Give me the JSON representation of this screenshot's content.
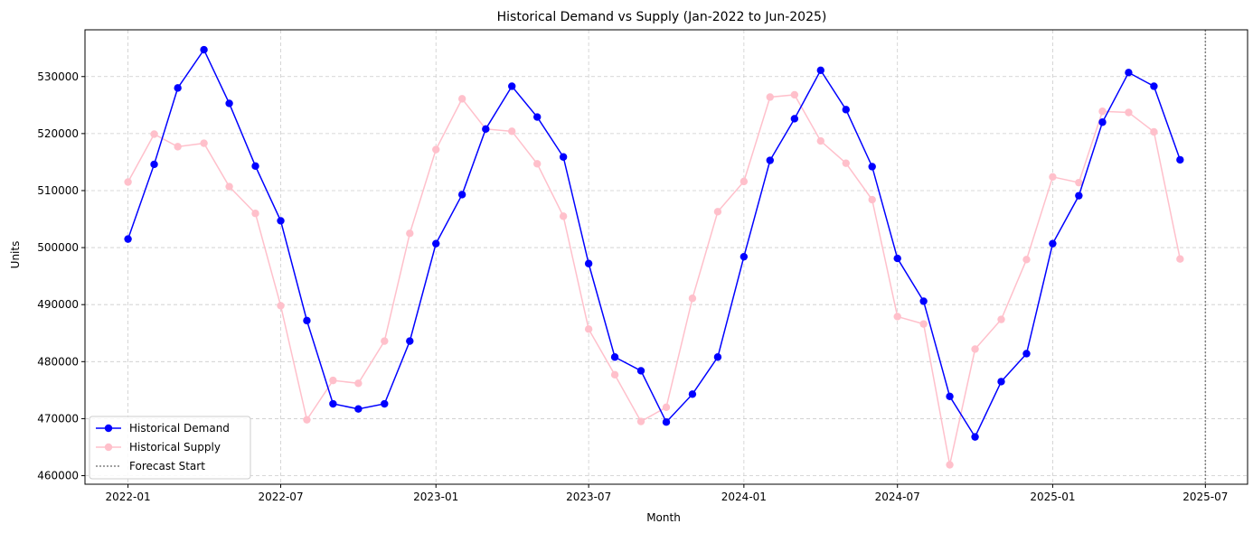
{
  "chart_data": {
    "type": "line",
    "title": "Historical Demand vs Supply (Jan-2022 to Jun-2025)",
    "xlabel": "Month",
    "ylabel": "Units",
    "x_ticks": [
      "2022-01",
      "2022-07",
      "2023-01",
      "2023-07",
      "2024-01",
      "2024-07",
      "2025-01",
      "2025-07"
    ],
    "y_ticks": [
      460000,
      470000,
      480000,
      490000,
      500000,
      510000,
      520000,
      530000
    ],
    "xlim": [
      "2021-11-11",
      "2025-08-20"
    ],
    "ylim": [
      458500,
      538200
    ],
    "grid": true,
    "legend_position": "lower-left",
    "x": [
      "2022-01-01",
      "2022-02-01",
      "2022-03-01",
      "2022-04-01",
      "2022-05-01",
      "2022-06-01",
      "2022-07-01",
      "2022-08-01",
      "2022-09-01",
      "2022-10-01",
      "2022-11-01",
      "2022-12-01",
      "2023-01-01",
      "2023-02-01",
      "2023-03-01",
      "2023-04-01",
      "2023-05-01",
      "2023-06-01",
      "2023-07-01",
      "2023-08-01",
      "2023-09-01",
      "2023-10-01",
      "2023-11-01",
      "2023-12-01",
      "2024-01-01",
      "2024-02-01",
      "2024-03-01",
      "2024-04-01",
      "2024-05-01",
      "2024-06-01",
      "2024-07-01",
      "2024-08-01",
      "2024-09-01",
      "2024-10-01",
      "2024-11-01",
      "2024-12-01",
      "2025-01-01",
      "2025-02-01",
      "2025-03-01",
      "2025-04-01",
      "2025-05-01",
      "2025-06-01"
    ],
    "series": [
      {
        "name": "Historical Demand",
        "color": "#0000ff",
        "values": [
          501500,
          514600,
          528000,
          534700,
          525300,
          514300,
          504700,
          487200,
          472600,
          471700,
          472600,
          483600,
          500700,
          509300,
          520800,
          528300,
          522900,
          515900,
          497200,
          480800,
          478400,
          469400,
          474300,
          480800,
          498400,
          515300,
          522600,
          531100,
          524200,
          514200,
          498100,
          490600,
          473900,
          466800,
          476500,
          481400,
          500700,
          509100,
          522000,
          530700,
          528300,
          515400
        ]
      },
      {
        "name": "Historical Supply",
        "color": "#ffc0cb",
        "values": [
          511500,
          519900,
          517700,
          518300,
          510700,
          506000,
          489800,
          469800,
          476700,
          476200,
          483600,
          502500,
          517200,
          526100,
          520800,
          520400,
          514700,
          505500,
          485700,
          477700,
          469500,
          472000,
          491100,
          506300,
          511600,
          526400,
          526800,
          518700,
          514800,
          508400,
          487900,
          486600,
          461900,
          482200,
          487400,
          497900,
          512400,
          511400,
          523900,
          523700,
          520300,
          498000
        ]
      }
    ],
    "vline": {
      "name": "Forecast Start",
      "x": "2025-07-01",
      "color": "#808080"
    }
  }
}
